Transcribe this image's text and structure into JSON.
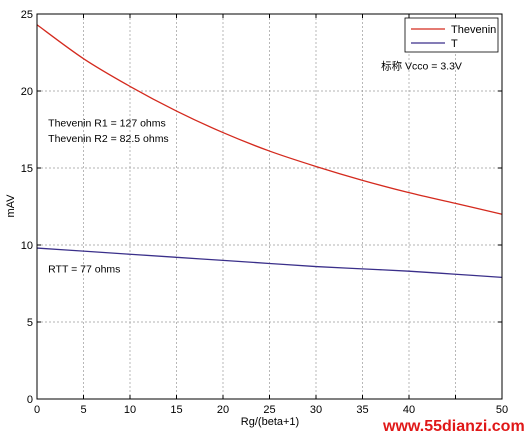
{
  "chart_data": {
    "type": "line",
    "xlabel": "Rg/(beta+1)",
    "ylabel": "mAV",
    "xlim": [
      0,
      50
    ],
    "ylim": [
      0,
      25
    ],
    "xticks": [
      0,
      5,
      10,
      15,
      20,
      25,
      30,
      35,
      40,
      45,
      50
    ],
    "xtick_labels": [
      "0",
      "5",
      "10",
      "15",
      "20",
      "25",
      "30",
      "35",
      "40",
      "",
      "50"
    ],
    "yticks": [
      0,
      5,
      10,
      15,
      20,
      25
    ],
    "ytick_labels": [
      "0",
      "5",
      "10",
      "15",
      "20",
      "25"
    ],
    "grid": true,
    "legend_position": "top-right",
    "series": [
      {
        "name": "Thevenin",
        "color": "#d42a1e",
        "x": [
          0,
          5,
          10,
          15,
          20,
          25,
          30,
          35,
          40,
          45,
          50
        ],
        "y": [
          24.3,
          22.1,
          20.3,
          18.7,
          17.3,
          16.1,
          15.1,
          14.2,
          13.4,
          12.7,
          12.0
        ]
      },
      {
        "name": "T",
        "color": "#3a2f8a",
        "x": [
          0,
          5,
          10,
          15,
          20,
          25,
          30,
          35,
          40,
          45,
          50
        ],
        "y": [
          9.8,
          9.6,
          9.4,
          9.2,
          9.0,
          8.8,
          8.6,
          8.45,
          8.3,
          8.1,
          7.9
        ]
      }
    ],
    "annotations": [
      {
        "text": "标称 Vcco = 3.3V",
        "x": 37,
        "y": 21.4
      },
      {
        "text": "Thevenin R1 = 127 ohms",
        "x": 1.2,
        "y": 17.7
      },
      {
        "text": "Thevenin R2 = 82.5 ohms",
        "x": 1.2,
        "y": 16.7
      },
      {
        "text": "RTT = 77 ohms",
        "x": 1.2,
        "y": 8.2
      }
    ]
  },
  "watermark": {
    "text": "www.55dianzi.com",
    "color": "#e01818"
  }
}
